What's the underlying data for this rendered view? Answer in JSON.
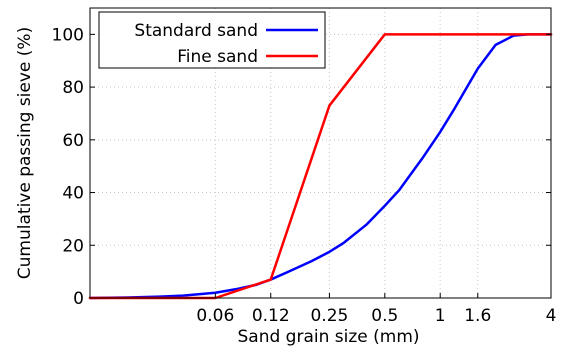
{
  "chart_data": {
    "type": "line",
    "xlabel": "Sand grain size (mm)",
    "ylabel": "Cumulative passing sieve (%)",
    "xscale": "log",
    "xlim": [
      0.0125,
      4
    ],
    "ylim": [
      0,
      110
    ],
    "grid": true,
    "legend_position": "top-left",
    "x_ticks": [
      0.06,
      0.12,
      0.25,
      0.5,
      1,
      1.6,
      4
    ],
    "x_tick_labels": [
      "0.06",
      "0.12",
      "0.25",
      "0.5",
      "1",
      "1.6",
      "4"
    ],
    "y_ticks": [
      0,
      20,
      40,
      60,
      80,
      100
    ],
    "y_tick_labels": [
      "0",
      "20",
      "40",
      "60",
      "80",
      "100"
    ],
    "series": [
      {
        "name": "Standard sand",
        "color": "#0000ff",
        "x": [
          0.0125,
          0.02,
          0.03,
          0.04,
          0.06,
          0.08,
          0.1,
          0.12,
          0.15,
          0.2,
          0.25,
          0.3,
          0.4,
          0.5,
          0.6,
          0.8,
          1.0,
          1.2,
          1.6,
          2.0,
          2.5,
          3.0,
          4.0
        ],
        "values": [
          0,
          0.2,
          0.5,
          0.9,
          2.0,
          3.5,
          5.0,
          7.0,
          10.0,
          14.0,
          17.5,
          21.0,
          28.0,
          35.0,
          41.0,
          53.0,
          63.0,
          72.0,
          87.0,
          96.0,
          99.5,
          100,
          100
        ]
      },
      {
        "name": "Fine sand",
        "color": "#ff0000",
        "x": [
          0.0125,
          0.06,
          0.12,
          0.25,
          0.5,
          4
        ],
        "values": [
          0,
          0,
          7,
          73,
          100,
          100
        ]
      }
    ]
  }
}
